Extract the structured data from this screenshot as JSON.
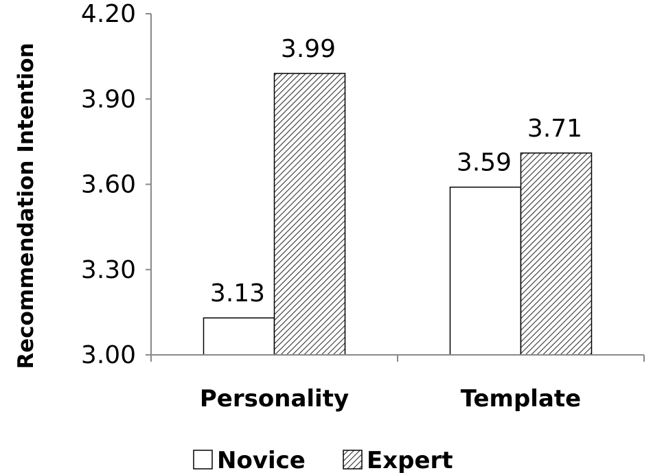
{
  "chart_data": {
    "type": "bar",
    "title": "",
    "xlabel": "",
    "ylabel": "Recommendation Intention",
    "categories": [
      "Personality",
      "Template"
    ],
    "series": [
      {
        "name": "Novice",
        "values": [
          3.13,
          3.59
        ],
        "labels": [
          "3.13",
          "3.59"
        ],
        "fill": "white"
      },
      {
        "name": "Expert",
        "values": [
          3.99,
          3.71
        ],
        "labels": [
          "3.99",
          "3.71"
        ],
        "fill": "hatched"
      }
    ],
    "ylim": [
      3.0,
      4.2
    ],
    "yticks": [
      "3.00",
      "3.30",
      "3.60",
      "3.90",
      "4.20"
    ],
    "grid": false,
    "legend_position": "bottom",
    "colors": {
      "bar_stroke": "#000000",
      "axis": "#888888",
      "hatch": "#333333",
      "novice_fill": "#ffffff"
    }
  }
}
